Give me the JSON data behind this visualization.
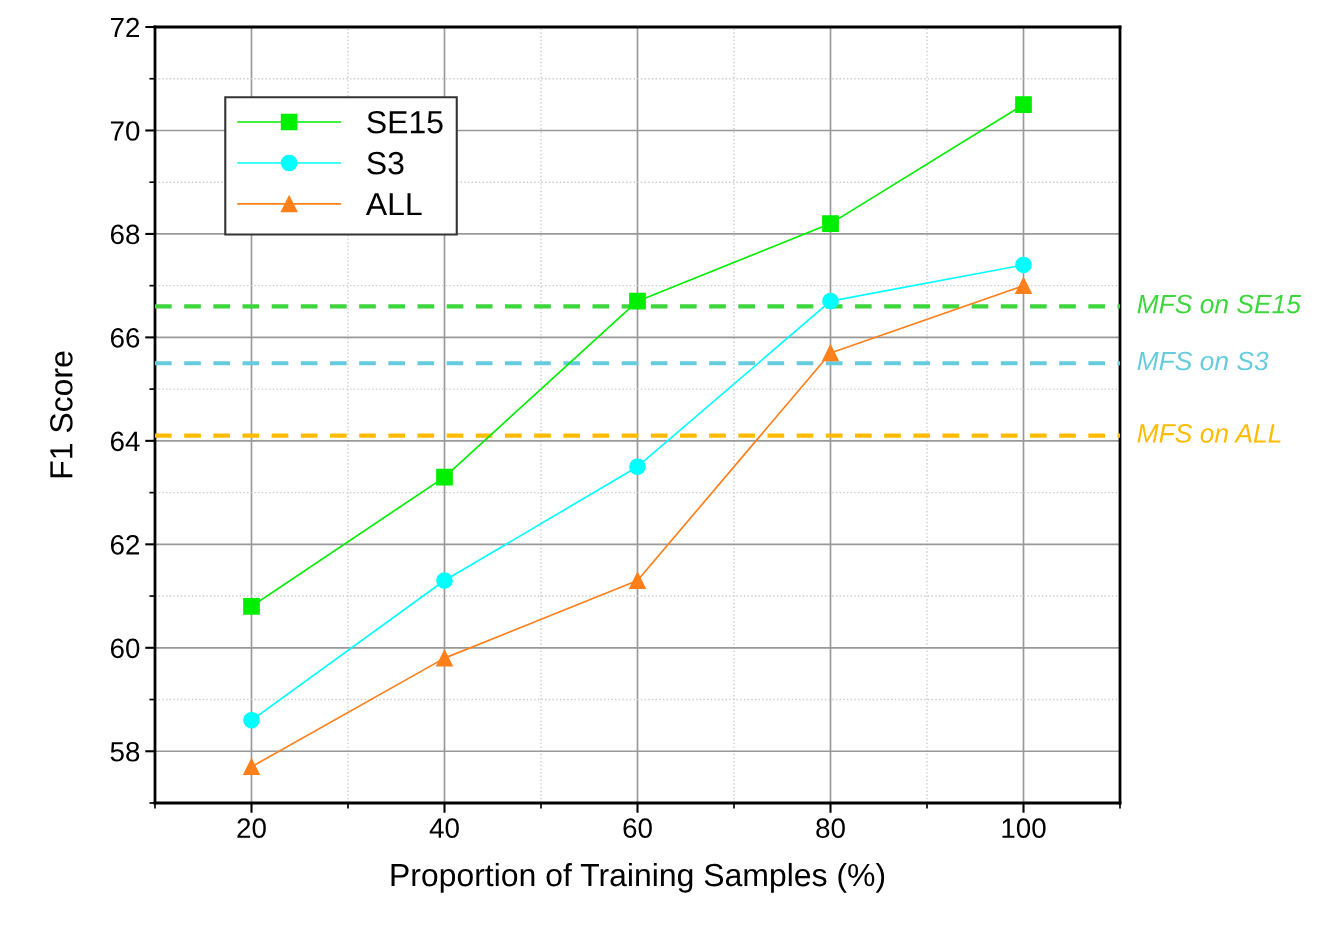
{
  "chart_data": {
    "type": "line",
    "xlabel": "Proportion of Training Samples (%)",
    "ylabel": "F1 Score",
    "x": [
      20,
      40,
      60,
      80,
      100
    ],
    "series": [
      {
        "name": "SE15",
        "color": "#00ee00",
        "marker": "square",
        "values": [
          60.8,
          63.3,
          66.7,
          68.2,
          70.5
        ]
      },
      {
        "name": "S3",
        "color": "#00ffff",
        "marker": "circle",
        "values": [
          58.6,
          61.3,
          63.5,
          66.7,
          67.4
        ]
      },
      {
        "name": "ALL",
        "color": "#ff7f1a",
        "marker": "triangle",
        "values": [
          57.7,
          59.8,
          61.3,
          65.7,
          67.0
        ]
      }
    ],
    "ref_lines": [
      {
        "axis": "y",
        "value": 66.6,
        "label": "MFS on SE15",
        "color": "#3dd63d",
        "line_style": "dashed"
      },
      {
        "axis": "y",
        "value": 65.5,
        "label": "MFS on S3",
        "color": "#66ccdd",
        "line_style": "dashed"
      },
      {
        "axis": "y",
        "value": 64.1,
        "label": "MFS on ALL",
        "color": "#ffbb00",
        "line_style": "dashed"
      }
    ],
    "xlim": [
      10,
      110
    ],
    "xticks": [
      20,
      40,
      60,
      80,
      100
    ],
    "ylim": [
      57,
      72
    ],
    "yticks": [
      58,
      60,
      62,
      64,
      66,
      68,
      70,
      72
    ],
    "grid": true,
    "legend": "top left",
    "line_style": "solid"
  }
}
